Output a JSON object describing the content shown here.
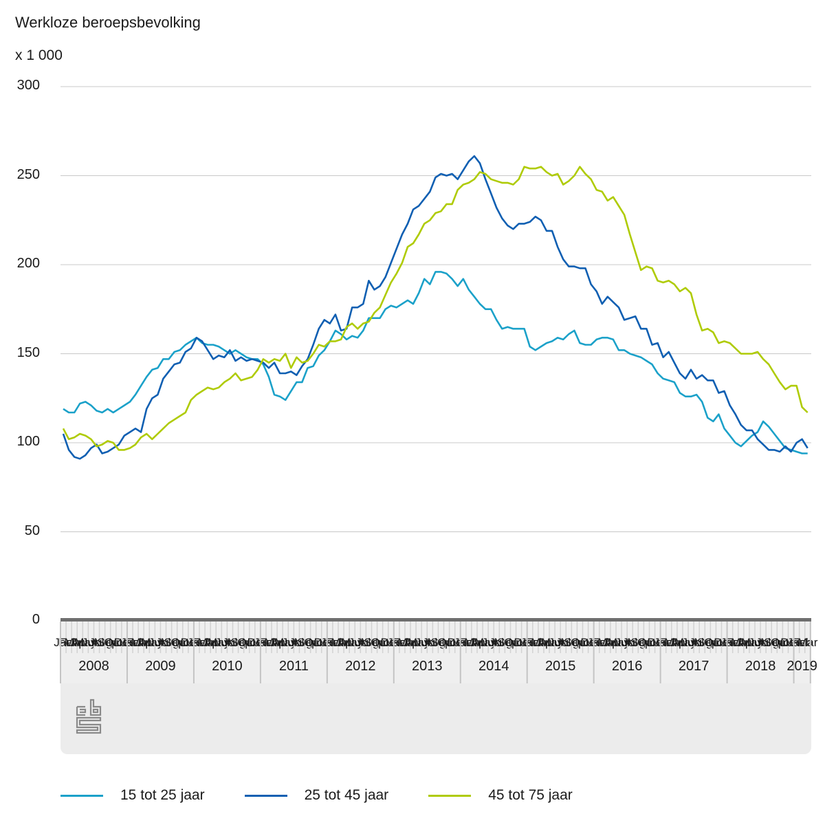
{
  "chart_data": {
    "type": "line",
    "title": "Werkloze beroepsbevolking",
    "ylabel": "x 1 000",
    "xlabel": "",
    "ylim": [
      0,
      300
    ],
    "yticks": [
      0,
      50,
      100,
      150,
      200,
      250,
      300
    ],
    "grid": true,
    "legend_position": "bottom",
    "x_start": "2008-01",
    "x_end": "2019-03",
    "x_month_labels": [
      "Jan",
      "Feb",
      "Mar",
      "Apr",
      "May",
      "Jun",
      "Jul",
      "Aug",
      "Sep",
      "Oct",
      "Nov",
      "Dec"
    ],
    "years": [
      "2008",
      "2009",
      "2010",
      "2011",
      "2012",
      "2013",
      "2014",
      "2015",
      "2016",
      "2017",
      "2018",
      "2019"
    ],
    "series": [
      {
        "name": "15 tot 25 jaar",
        "color": "#1ba1c9",
        "values": [
          119,
          117,
          117,
          122,
          123,
          121,
          118,
          117,
          119,
          117,
          119,
          121,
          123,
          127,
          132,
          137,
          141,
          142,
          147,
          147,
          151,
          152,
          155,
          157,
          159,
          156,
          155,
          155,
          154,
          152,
          150,
          152,
          150,
          148,
          147,
          147,
          144,
          137,
          127,
          126,
          124,
          129,
          134,
          134,
          142,
          143,
          149,
          152,
          157,
          163,
          161,
          158,
          160,
          159,
          163,
          170,
          170,
          170,
          175,
          177,
          176,
          178,
          180,
          178,
          184,
          192,
          189,
          196,
          196,
          195,
          192,
          188,
          192,
          186,
          182,
          178,
          175,
          175,
          169,
          164,
          165,
          164,
          164,
          164,
          154,
          152,
          154,
          156,
          157,
          159,
          158,
          161,
          163,
          156,
          155,
          155,
          158,
          159,
          159,
          158,
          152,
          152,
          150,
          149,
          148,
          146,
          144,
          139,
          136,
          135,
          134,
          128,
          126,
          126,
          127,
          123,
          114,
          112,
          116,
          108,
          104,
          100,
          98,
          101,
          104,
          106,
          112,
          109,
          105,
          101,
          97,
          96,
          95,
          94,
          94
        ]
      },
      {
        "name": "25 tot 45 jaar",
        "color": "#0f5fb2",
        "values": [
          105,
          96,
          92,
          91,
          93,
          97,
          99,
          94,
          95,
          97,
          99,
          104,
          106,
          108,
          106,
          119,
          125,
          127,
          136,
          140,
          144,
          145,
          151,
          153,
          159,
          157,
          152,
          147,
          149,
          148,
          152,
          146,
          148,
          146,
          147,
          146,
          145,
          142,
          145,
          139,
          139,
          140,
          138,
          143,
          147,
          155,
          164,
          169,
          167,
          172,
          163,
          164,
          176,
          176,
          178,
          191,
          186,
          188,
          193,
          201,
          209,
          217,
          223,
          231,
          233,
          237,
          241,
          249,
          251,
          250,
          251,
          248,
          253,
          258,
          261,
          257,
          248,
          240,
          232,
          226,
          222,
          220,
          223,
          223,
          224,
          227,
          225,
          219,
          219,
          210,
          203,
          199,
          199,
          198,
          198,
          189,
          185,
          178,
          182,
          179,
          176,
          169,
          170,
          171,
          164,
          164,
          155,
          156,
          148,
          151,
          145,
          139,
          136,
          141,
          136,
          138,
          135,
          135,
          128,
          129,
          121,
          116,
          110,
          107,
          107,
          102,
          99,
          96,
          96,
          95,
          98,
          95,
          100,
          102,
          97
        ]
      },
      {
        "name": "45 tot 75 jaar",
        "color": "#afcb05",
        "values": [
          108,
          102,
          103,
          105,
          104,
          102,
          98,
          99,
          101,
          100,
          96,
          96,
          97,
          99,
          103,
          105,
          102,
          105,
          108,
          111,
          113,
          115,
          117,
          124,
          127,
          129,
          131,
          130,
          131,
          134,
          136,
          139,
          135,
          136,
          137,
          141,
          147,
          145,
          147,
          146,
          150,
          142,
          148,
          145,
          146,
          150,
          155,
          154,
          157,
          157,
          158,
          165,
          167,
          164,
          167,
          168,
          173,
          176,
          183,
          190,
          195,
          201,
          210,
          212,
          217,
          223,
          225,
          229,
          230,
          234,
          234,
          242,
          245,
          246,
          248,
          252,
          251,
          248,
          247,
          246,
          246,
          245,
          248,
          255,
          254,
          254,
          255,
          252,
          250,
          251,
          245,
          247,
          250,
          255,
          251,
          248,
          242,
          241,
          236,
          238,
          233,
          228,
          217,
          207,
          197,
          199,
          198,
          191,
          190,
          191,
          189,
          185,
          187,
          184,
          172,
          163,
          164,
          162,
          156,
          157,
          156,
          153,
          150,
          150,
          150,
          151,
          147,
          144,
          139,
          134,
          130,
          132,
          132,
          120,
          117
        ]
      }
    ]
  },
  "header": {
    "title": "Werkloze beroepsbevolking",
    "unit": "x 1 000"
  },
  "legend": [
    {
      "label": "15 tot 25 jaar",
      "color": "#1ba1c9"
    },
    {
      "label": "25 tot 45 jaar",
      "color": "#0f5fb2"
    },
    {
      "label": "45 tot 75 jaar",
      "color": "#afcb05"
    }
  ],
  "footer": {
    "logo": "cbs-logo"
  }
}
